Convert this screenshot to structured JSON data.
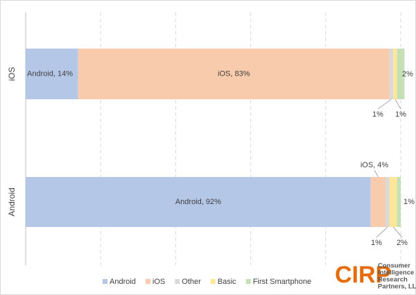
{
  "chart_data": {
    "type": "bar",
    "orientation": "horizontal",
    "stacked": true,
    "categories": [
      "iOS",
      "Android"
    ],
    "series": [
      {
        "name": "Android",
        "color": "#b4c7e7",
        "values": [
          14,
          92
        ],
        "value_labels": [
          "Android, 14%",
          "Android, 92%"
        ]
      },
      {
        "name": "iOS",
        "color": "#f8cbad",
        "values": [
          83,
          4
        ],
        "value_labels": [
          "iOS, 83%",
          "iOS, 4%"
        ]
      },
      {
        "name": "Other",
        "color": "#d9d9d9",
        "values": [
          1,
          1
        ],
        "value_labels": [
          "1%",
          "1%"
        ]
      },
      {
        "name": "Basic",
        "color": "#ffe699",
        "values": [
          1,
          2
        ],
        "value_labels": [
          "1%",
          "2%"
        ]
      },
      {
        "name": "First Smartphone",
        "color": "#c5e0b4",
        "values": [
          2,
          1
        ],
        "value_labels": [
          "2%",
          "1%"
        ]
      }
    ],
    "xlim": [
      0,
      100
    ],
    "xticks": [
      0,
      20,
      40,
      60,
      80,
      100
    ],
    "grid": true,
    "legend": "bottom",
    "logo": {
      "mark": "CIRP",
      "lines": [
        "Consumer",
        "Intelligence",
        "Research",
        "Partners, LLC"
      ]
    }
  }
}
